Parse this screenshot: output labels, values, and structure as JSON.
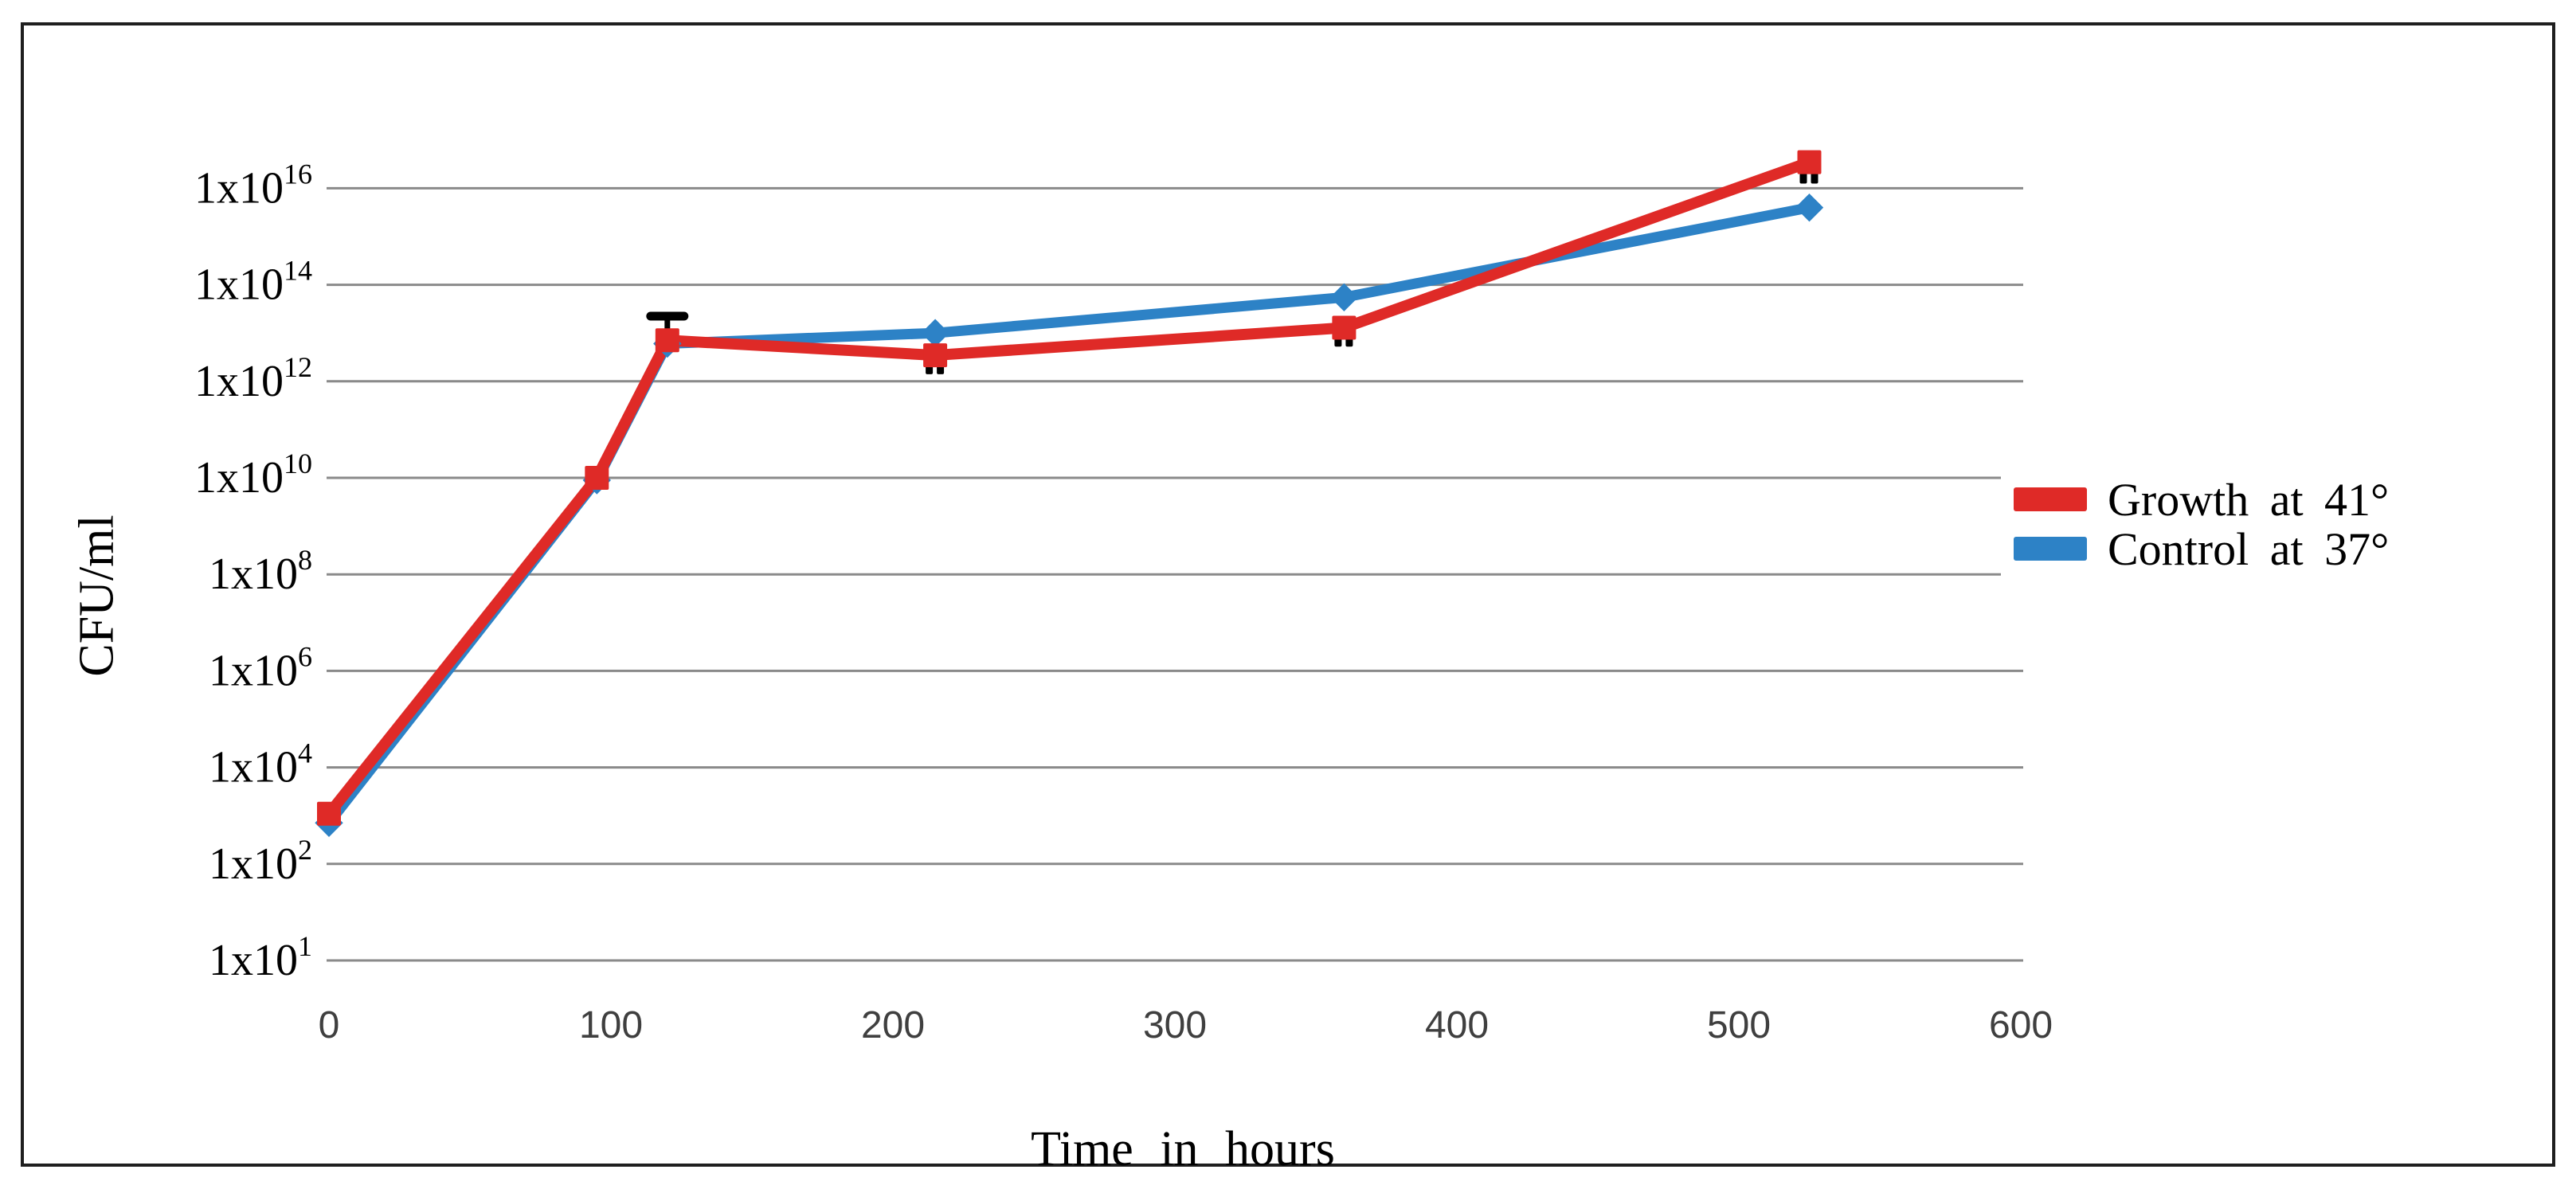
{
  "figure": {
    "background": "#ffffff",
    "border_color": "#1f1f1f",
    "gridline_color": "#8a8a8a",
    "tick_label_color": "#3f3f3f"
  },
  "chart_data": {
    "type": "line",
    "title": "",
    "xlabel": "Time in hours",
    "ylabel": "CFU/ml",
    "grid": true,
    "legend_position": "right",
    "x_axis": {
      "ticks": [
        0,
        100,
        200,
        300,
        400,
        500,
        600
      ],
      "range": [
        0,
        600
      ]
    },
    "y_axis": {
      "scale": "log",
      "tick_prefix": "1x10",
      "tick_exponents": [
        16,
        14,
        12,
        10,
        8,
        6,
        4,
        2,
        1
      ],
      "range_log": [
        1,
        16.9
      ]
    },
    "x": [
      0,
      95,
      120,
      215,
      360,
      525
    ],
    "series": [
      {
        "name": "Growth at 41°",
        "color": "#df2a27",
        "marker": "square",
        "values": [
          "1x10^3",
          "1x10^10",
          "7x10^12",
          "3.5x10^12",
          "1.3x10^13",
          "3.5x10^16"
        ],
        "log10_values": [
          3.04,
          10.0,
          12.85,
          12.54,
          13.11,
          16.54
        ],
        "error_bars": [
          null,
          null,
          {
            "upper_log": 13.35
          },
          {
            "lower_log": 12.28
          },
          {
            "lower_log": 12.85
          },
          {
            "lower_log": 16.23
          }
        ]
      },
      {
        "name": "Control at 37°",
        "color": "#2d82c6",
        "marker": "diamond",
        "values": [
          "7x10^2",
          "9x10^9",
          "6x10^12",
          "1x10^13",
          "5.5x10^13",
          "4x10^15"
        ],
        "log10_values": [
          2.85,
          9.95,
          12.78,
          13.0,
          13.74,
          15.6
        ],
        "error_bars": [
          null,
          null,
          null,
          null,
          null,
          null
        ]
      }
    ]
  },
  "legend": {
    "items": [
      {
        "label": "Growth at 41°",
        "color": "#df2a27"
      },
      {
        "label": "Control at 37°",
        "color": "#2d82c6"
      }
    ]
  }
}
